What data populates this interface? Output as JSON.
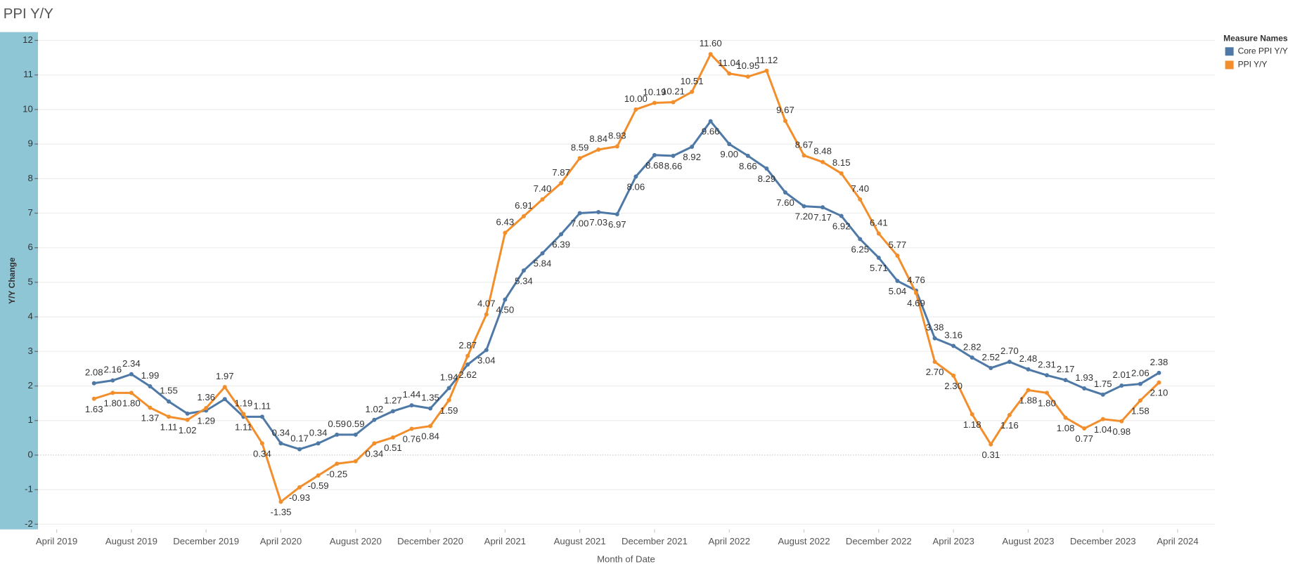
{
  "chart_data": {
    "type": "line",
    "title": "PPI Y/Y",
    "x_label": "Month of Date",
    "y_label": "Y/Y Change",
    "legend_title": "Measure Names",
    "legend": "top-right",
    "grid": true,
    "x": [
      "2019-06",
      "2019-07",
      "2019-08",
      "2019-09",
      "2019-10",
      "2019-11",
      "2019-12",
      "2020-01",
      "2020-02",
      "2020-03",
      "2020-04",
      "2020-05",
      "2020-06",
      "2020-07",
      "2020-08",
      "2020-09",
      "2020-10",
      "2020-11",
      "2020-12",
      "2021-01",
      "2021-02",
      "2021-03",
      "2021-04",
      "2021-05",
      "2021-06",
      "2021-07",
      "2021-08",
      "2021-09",
      "2021-10",
      "2021-11",
      "2021-12",
      "2022-01",
      "2022-02",
      "2022-03",
      "2022-04",
      "2022-05",
      "2022-06",
      "2022-07",
      "2022-08",
      "2022-09",
      "2022-10",
      "2022-11",
      "2022-12",
      "2023-01",
      "2023-02",
      "2023-03",
      "2023-04",
      "2023-05",
      "2023-06",
      "2023-07",
      "2023-08",
      "2023-09",
      "2023-10",
      "2023-11",
      "2023-12",
      "2024-01",
      "2024-02",
      "2024-03"
    ],
    "series": [
      {
        "name": "Core PPI Y/Y",
        "color": "#4e79a7",
        "values": [
          2.08,
          2.16,
          2.34,
          1.99,
          1.55,
          1.2,
          1.29,
          1.62,
          1.11,
          1.11,
          0.34,
          0.17,
          0.34,
          0.59,
          0.59,
          1.02,
          1.27,
          1.44,
          1.35,
          1.94,
          2.62,
          3.04,
          4.5,
          5.34,
          5.84,
          6.39,
          7.0,
          7.03,
          6.97,
          8.06,
          8.68,
          8.66,
          8.92,
          9.66,
          9.0,
          8.66,
          8.29,
          7.6,
          7.2,
          7.17,
          6.92,
          6.25,
          5.71,
          5.04,
          4.76,
          3.38,
          3.16,
          2.82,
          2.52,
          2.7,
          2.48,
          2.31,
          2.17,
          1.93,
          1.75,
          2.01,
          2.06,
          2.38
        ],
        "value_labels": [
          "2.08",
          "2.16",
          "2.34",
          "1.99",
          "1.55",
          null,
          "1.29",
          null,
          "1.11",
          "1.11",
          "0.34",
          "0.17",
          "0.34",
          "0.59",
          "0.59",
          "1.02",
          "1.27",
          "1.44",
          "1.35",
          "1.94",
          "2.62",
          "3.04",
          "4.50",
          "5.34",
          "5.84",
          "6.39",
          "7.00",
          "7.03",
          "6.97",
          "8.06",
          "8.68",
          "8.66",
          "8.92",
          "9.66",
          "9.00",
          "8.66",
          "8.29",
          "7.60",
          "7.20",
          "7.17",
          "6.92",
          "6.25",
          "5.71",
          "5.04",
          "4.76",
          "3.38",
          "3.16",
          "2.82",
          "2.52",
          "2.70",
          "2.48",
          "2.31",
          "2.17",
          "1.93",
          "1.75",
          "2.01",
          "2.06",
          "2.38"
        ]
      },
      {
        "name": "PPI Y/Y",
        "color": "#f28e2b",
        "values": [
          1.63,
          1.8,
          1.8,
          1.37,
          1.11,
          1.02,
          1.36,
          1.97,
          1.19,
          0.34,
          -1.35,
          -0.93,
          -0.59,
          -0.25,
          -0.18,
          0.34,
          0.51,
          0.76,
          0.84,
          1.59,
          2.87,
          4.07,
          6.43,
          6.91,
          7.4,
          7.87,
          8.59,
          8.84,
          8.93,
          10.0,
          10.19,
          10.21,
          10.51,
          11.6,
          11.04,
          10.95,
          11.12,
          9.67,
          8.67,
          8.48,
          8.15,
          7.4,
          6.41,
          5.77,
          4.69,
          2.7,
          2.3,
          1.18,
          0.31,
          1.16,
          1.88,
          1.8,
          1.08,
          0.77,
          1.04,
          0.98,
          1.58,
          2.1
        ],
        "value_labels": [
          "1.63",
          "1.80",
          "1.80",
          "1.37",
          "1.11",
          "1.02",
          "1.36",
          "1.97",
          "1.19",
          "0.34",
          "-1.35",
          "-0.93",
          "-0.59",
          "-0.25",
          null,
          "0.34",
          "0.51",
          "0.76",
          "0.84",
          "1.59",
          "2.87",
          "4.07",
          "6.43",
          "6.91",
          "7.40",
          "7.87",
          "8.59",
          "8.84",
          "8.93",
          "10.00",
          "10.19",
          "10.21",
          "10.51",
          "11.60",
          "11.04",
          "10.95",
          "11.12",
          "9.67",
          "8.67",
          "8.48",
          "8.15",
          "7.40",
          "6.41",
          "5.77",
          "4.69",
          "2.70",
          "2.30",
          "1.18",
          "0.31",
          "1.16",
          "1.88",
          "1.80",
          "1.08",
          "0.77",
          "1.04",
          "0.98",
          "1.58",
          "2.10"
        ]
      }
    ],
    "xlim": [
      "2019-03",
      "2024-06"
    ],
    "xticks": [
      {
        "value": "2019-04",
        "label": "April 2019"
      },
      {
        "value": "2019-08",
        "label": "August 2019"
      },
      {
        "value": "2019-12",
        "label": "December 2019"
      },
      {
        "value": "2020-04",
        "label": "April 2020"
      },
      {
        "value": "2020-08",
        "label": "August 2020"
      },
      {
        "value": "2020-12",
        "label": "December 2020"
      },
      {
        "value": "2021-04",
        "label": "April 2021"
      },
      {
        "value": "2021-08",
        "label": "August 2021"
      },
      {
        "value": "2021-12",
        "label": "December 2021"
      },
      {
        "value": "2022-04",
        "label": "April 2022"
      },
      {
        "value": "2022-08",
        "label": "August 2022"
      },
      {
        "value": "2022-12",
        "label": "December 2022"
      },
      {
        "value": "2023-04",
        "label": "April 2023"
      },
      {
        "value": "2023-08",
        "label": "August 2023"
      },
      {
        "value": "2023-12",
        "label": "December 2023"
      },
      {
        "value": "2024-04",
        "label": "April 2024"
      }
    ],
    "ylim": [
      -2.15,
      12.24
    ],
    "yticks": [
      -2,
      -1,
      0,
      1,
      2,
      3,
      4,
      5,
      6,
      7,
      8,
      9,
      10,
      11,
      12
    ]
  }
}
